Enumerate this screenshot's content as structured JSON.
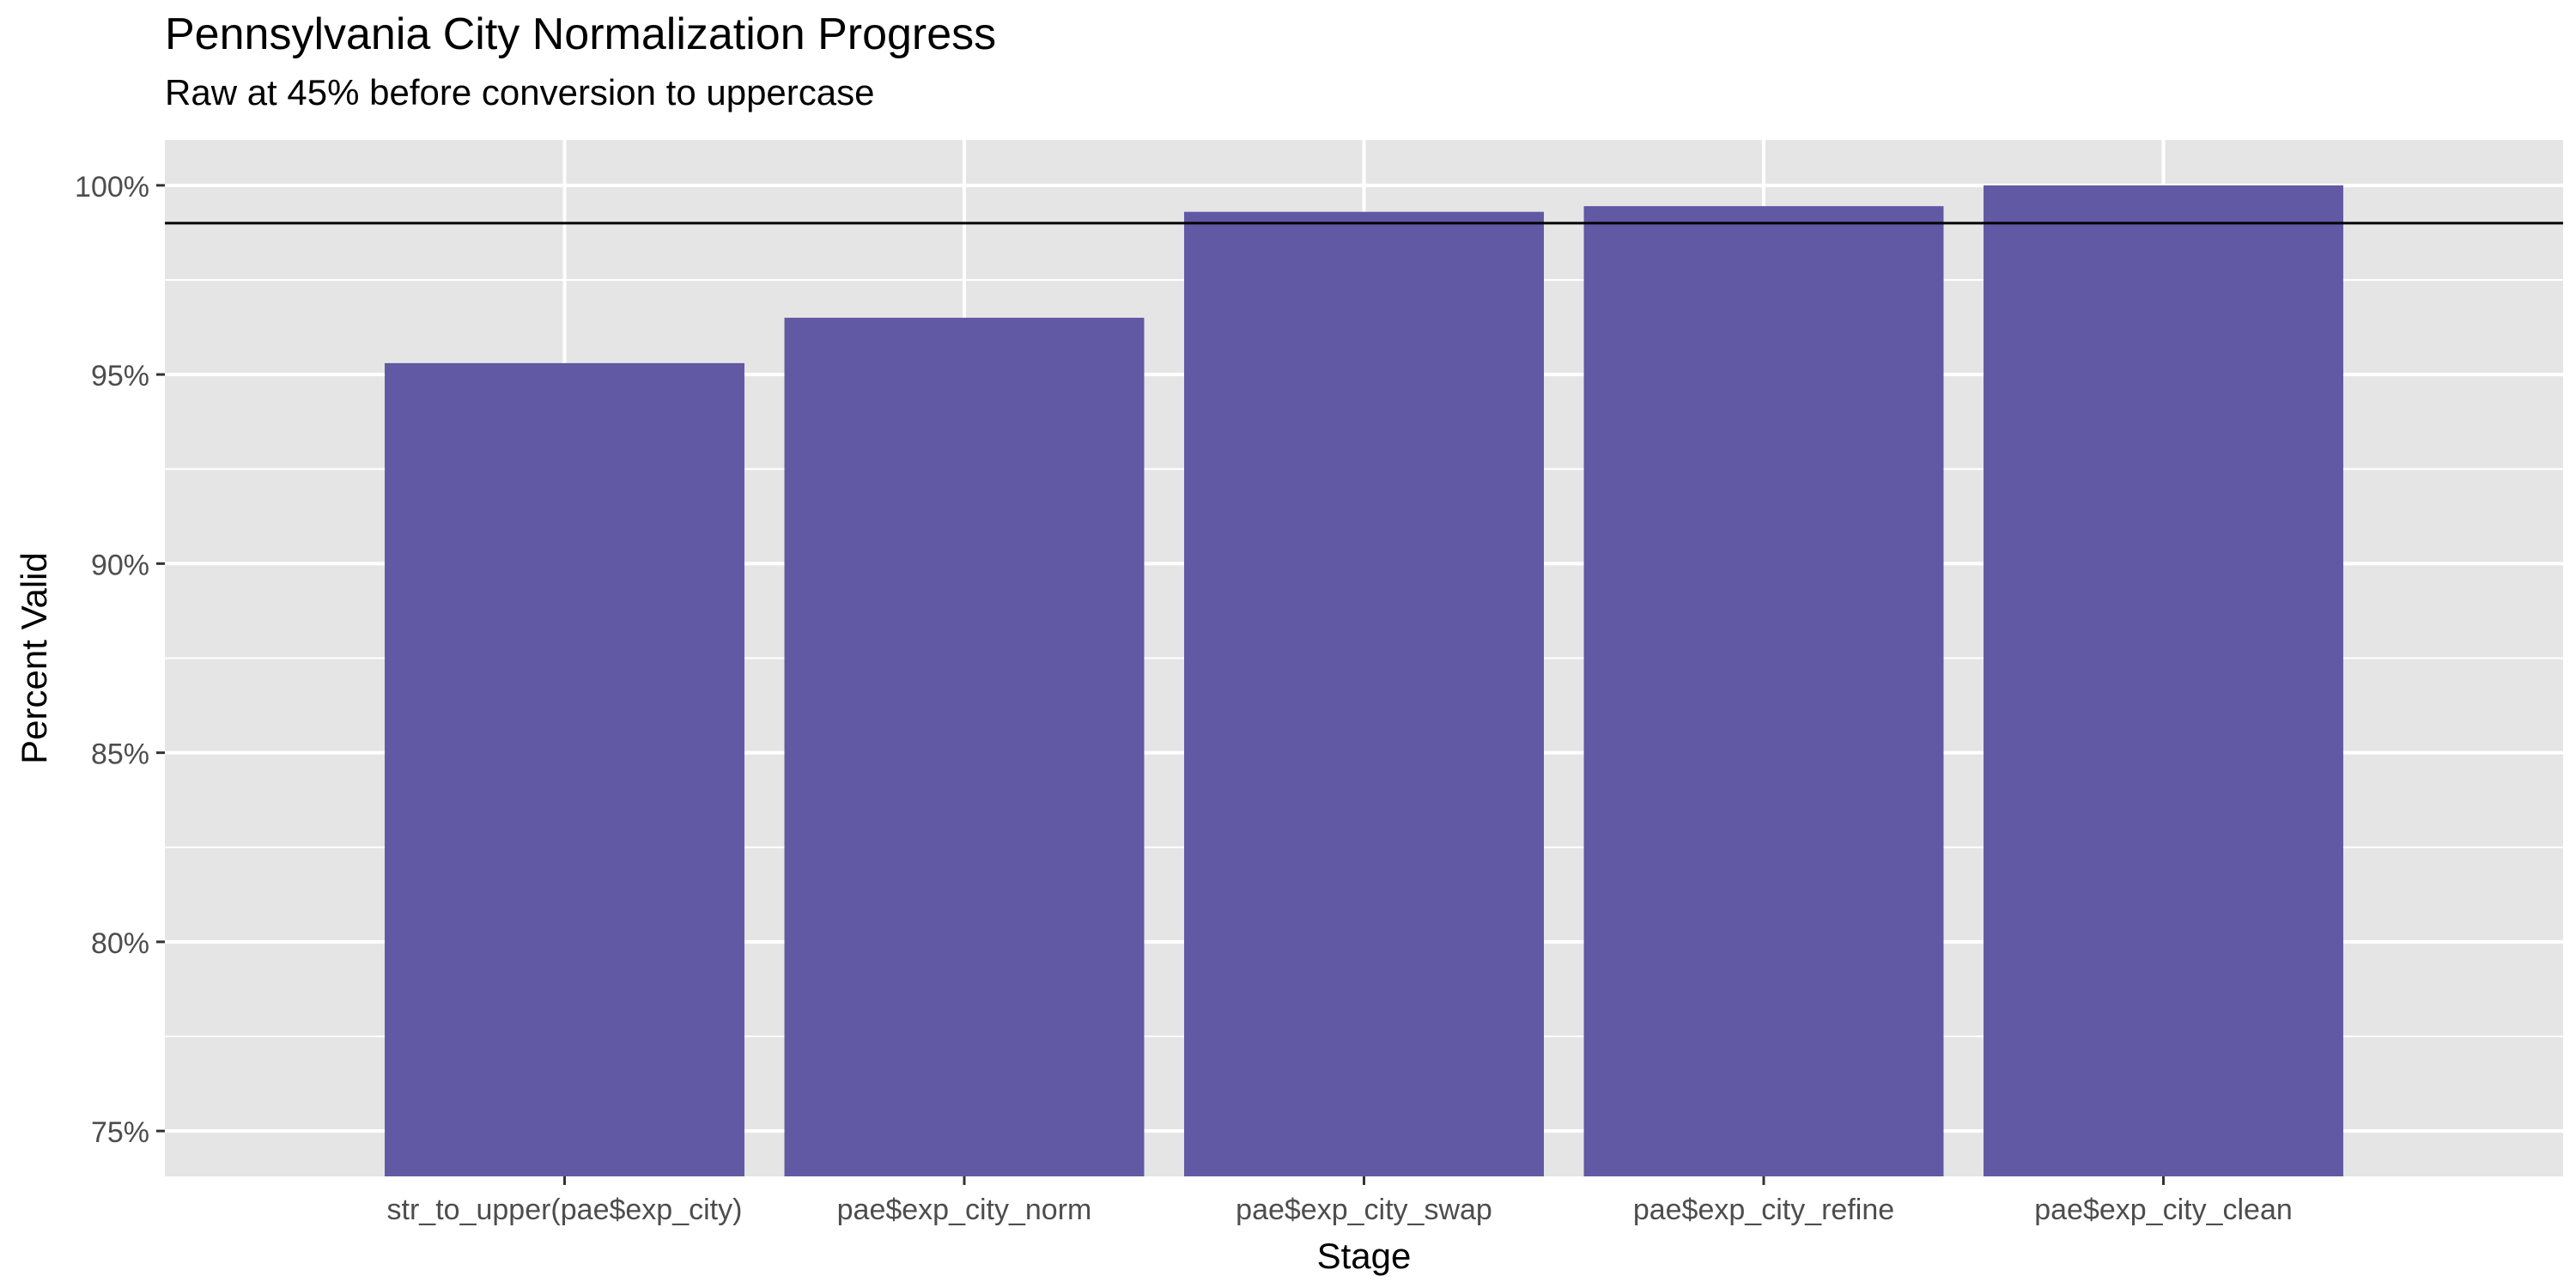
{
  "chart_data": {
    "type": "bar",
    "title": "Pennsylvania City Normalization Progress",
    "subtitle": "Raw at 45% before conversion to uppercase",
    "xlabel": "Stage",
    "ylabel": "Percent Valid",
    "categories": [
      "str_to_upper(pae$exp_city)",
      "pae$exp_city_norm",
      "pae$exp_city_swap",
      "pae$exp_city_refine",
      "pae$exp_city_clean"
    ],
    "values": [
      95.3,
      96.5,
      99.3,
      99.45,
      100.0
    ],
    "ylim": [
      73.8,
      101.2
    ],
    "yticks": [
      75,
      80,
      85,
      90,
      95,
      100
    ],
    "ytick_labels": [
      "75%",
      "80%",
      "85%",
      "90%",
      "95%",
      "100%"
    ],
    "reference_line": 99,
    "grid": true,
    "bar_color": "#6159a4",
    "panel_color": "#e5e5e5",
    "grid_color": "#ffffff"
  }
}
